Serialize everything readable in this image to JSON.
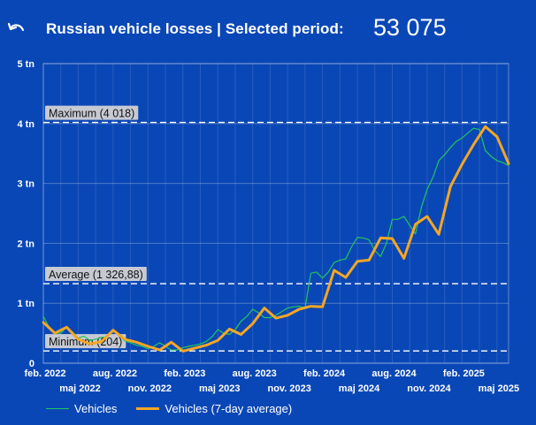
{
  "header": {
    "back_icon": "undo-arrow-icon",
    "title": "Russian vehicle losses | Selected period:",
    "total": "53 075"
  },
  "chart_data": {
    "type": "line",
    "title": "Russian vehicle losses",
    "ylim": [
      0,
      5
    ],
    "y_ticks": [
      "0",
      "1 tn",
      "2 tn",
      "3 tn",
      "4 tn",
      "5 tn"
    ],
    "x_ticks_row1": [
      {
        "label": "feb. 2022",
        "x": 0
      },
      {
        "label": "aug. 2022",
        "x": 6
      },
      {
        "label": "feb. 2023",
        "x": 12
      },
      {
        "label": "aug. 2023",
        "x": 18
      },
      {
        "label": "feb. 2024",
        "x": 24
      },
      {
        "label": "aug. 2024",
        "x": 30
      },
      {
        "label": "feb. 2025",
        "x": 36
      }
    ],
    "x_ticks_row2": [
      {
        "label": "maj 2022",
        "x": 3
      },
      {
        "label": "nov. 2022",
        "x": 9
      },
      {
        "label": "maj 2023",
        "x": 15
      },
      {
        "label": "nov. 2023",
        "x": 21
      },
      {
        "label": "maj 2024",
        "x": 27
      },
      {
        "label": "nov. 2024",
        "x": 33
      },
      {
        "label": "maj 2025",
        "x": 39
      }
    ],
    "reference_lines": [
      {
        "label": "Maximum (4 018)",
        "value": 4.018
      },
      {
        "label": "Average (1 326,88)",
        "value": 1.32688
      },
      {
        "label": "Minimum (204)",
        "value": 0.204
      }
    ],
    "series": [
      {
        "name": "Vehicles",
        "color": "#22c55e",
        "x": [
          0,
          0.5,
          1,
          1.5,
          2,
          2.5,
          3,
          3.5,
          4,
          4.5,
          5,
          5.5,
          6,
          6.5,
          7,
          7.5,
          8,
          8.5,
          9,
          9.5,
          10,
          10.5,
          11,
          11.5,
          12,
          12.5,
          13,
          13.5,
          14,
          14.5,
          15,
          15.5,
          16,
          16.5,
          17,
          17.5,
          18,
          18.5,
          19,
          19.5,
          20,
          20.5,
          21,
          21.5,
          22,
          22.5,
          23,
          23.5,
          24,
          24.5,
          25,
          25.5,
          26,
          26.5,
          27,
          27.5,
          28,
          28.5,
          29,
          29.5,
          30,
          30.5,
          31,
          31.5,
          32,
          32.5,
          33,
          33.5,
          34,
          34.5,
          35,
          35.5,
          36,
          36.5,
          37,
          37.5,
          38,
          38.5,
          39,
          39.5,
          40
        ],
        "values": [
          0.78,
          0.6,
          0.5,
          0.5,
          0.6,
          0.52,
          0.42,
          0.45,
          0.38,
          0.4,
          0.43,
          0.44,
          0.55,
          0.46,
          0.37,
          0.34,
          0.3,
          0.28,
          0.24,
          0.28,
          0.34,
          0.28,
          0.22,
          0.22,
          0.26,
          0.28,
          0.3,
          0.32,
          0.36,
          0.44,
          0.56,
          0.5,
          0.48,
          0.56,
          0.7,
          0.78,
          0.9,
          0.84,
          0.76,
          0.76,
          0.8,
          0.86,
          0.92,
          0.94,
          0.95,
          0.92,
          1.5,
          1.52,
          1.42,
          1.52,
          1.68,
          1.72,
          1.74,
          1.94,
          2.1,
          2.09,
          2.06,
          1.88,
          1.78,
          2.0,
          2.4,
          2.4,
          2.45,
          2.3,
          2.16,
          2.6,
          2.9,
          3.1,
          3.38,
          3.48,
          3.6,
          3.7,
          3.76,
          3.84,
          3.92,
          3.9,
          3.55,
          3.45,
          3.38,
          3.35,
          3.3
        ]
      },
      {
        "name": "Vehicles (7-day average)",
        "color": "#f5a623",
        "x": [
          0,
          1,
          2,
          3,
          4,
          5,
          6,
          7,
          8,
          9,
          10,
          11,
          12,
          13,
          14,
          15,
          16,
          17,
          18,
          19,
          20,
          21,
          22,
          23,
          24,
          25,
          26,
          27,
          28,
          29,
          30,
          31,
          32,
          33,
          34,
          35,
          36,
          37,
          38,
          39,
          40
        ],
        "values": [
          0.68,
          0.5,
          0.6,
          0.4,
          0.32,
          0.36,
          0.55,
          0.4,
          0.35,
          0.28,
          0.22,
          0.35,
          0.2,
          0.25,
          0.3,
          0.38,
          0.57,
          0.48,
          0.66,
          0.92,
          0.75,
          0.8,
          0.9,
          0.95,
          0.94,
          1.55,
          1.43,
          1.7,
          1.72,
          2.09,
          2.08,
          1.75,
          2.32,
          2.45,
          2.15,
          2.95,
          3.32,
          3.65,
          3.95,
          3.78,
          3.33
        ]
      }
    ],
    "legend": [
      {
        "label": "Vehicles",
        "color": "#22c55e"
      },
      {
        "label": "Vehicles (7-day average)",
        "color": "#f5a623"
      }
    ]
  }
}
